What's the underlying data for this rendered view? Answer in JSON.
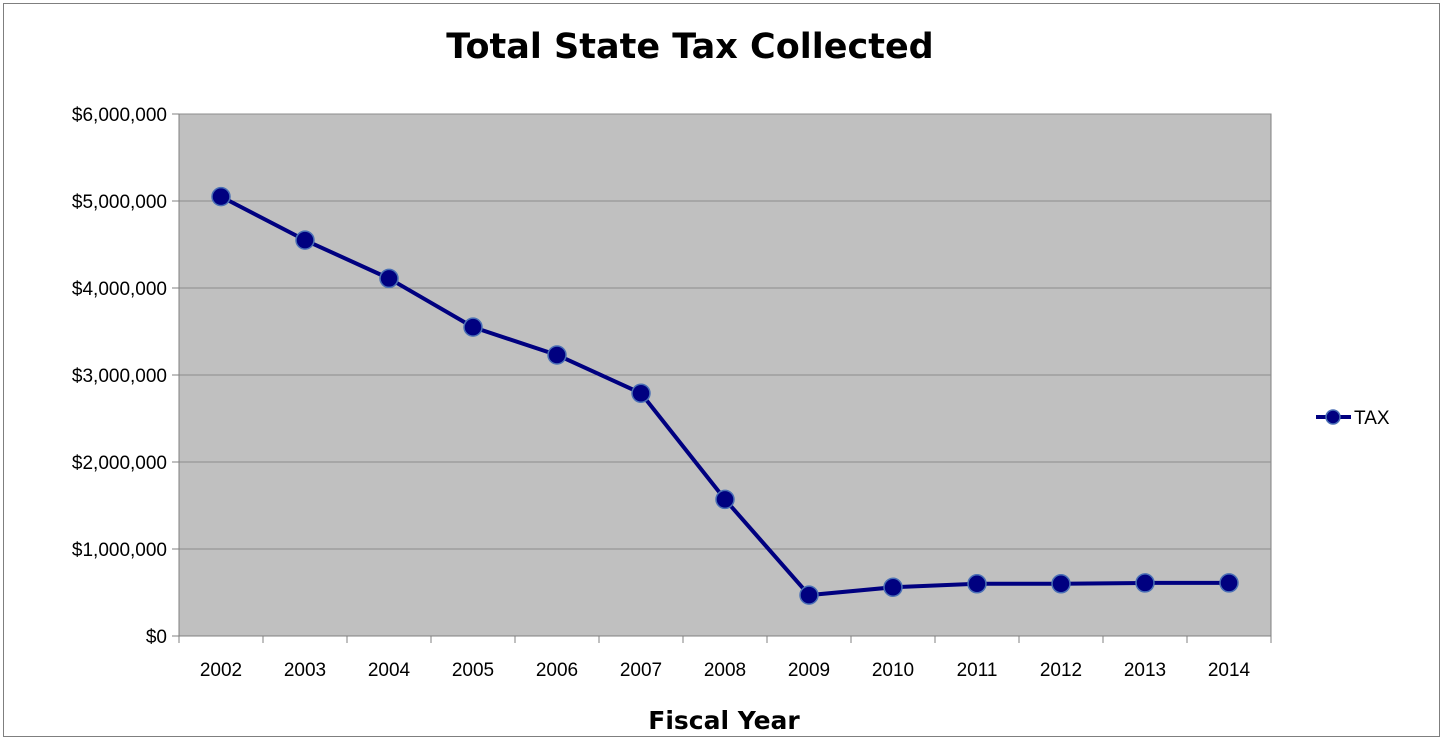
{
  "chart_data": {
    "type": "line",
    "title": "Total State Tax Collected",
    "xlabel": "Fiscal Year",
    "ylabel": "",
    "categories": [
      "2002",
      "2003",
      "2004",
      "2005",
      "2006",
      "2007",
      "2008",
      "2009",
      "2010",
      "2011",
      "2012",
      "2013",
      "2014"
    ],
    "series": [
      {
        "name": "TAX",
        "color": "#000080",
        "marker": "circle",
        "marker_edge_color": "#4a6fb5",
        "values": [
          5050000,
          4550000,
          4110000,
          3550000,
          3230000,
          2790000,
          1570000,
          470000,
          560000,
          600000,
          600000,
          610000,
          610000
        ]
      }
    ],
    "ylim": [
      0,
      6000000
    ],
    "yticks": [
      0,
      1000000,
      2000000,
      3000000,
      4000000,
      5000000,
      6000000
    ],
    "ytick_labels": [
      "$0",
      "$1,000,000",
      "$2,000,000",
      "$3,000,000",
      "$4,000,000",
      "$5,000,000",
      "$6,000,000"
    ],
    "grid": true,
    "plot_background": "#c0c0c0",
    "legend_position": "right"
  }
}
